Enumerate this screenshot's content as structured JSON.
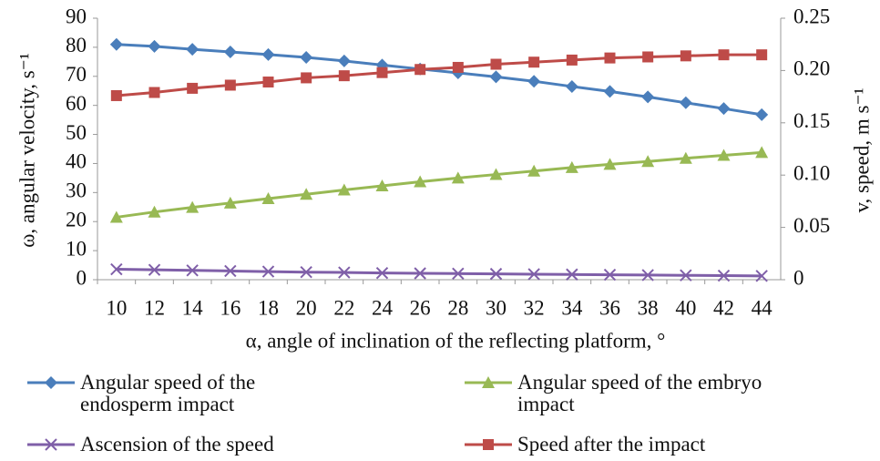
{
  "chart_data": {
    "type": "line",
    "categories": [
      "10",
      "12",
      "14",
      "16",
      "18",
      "20",
      "22",
      "24",
      "26",
      "28",
      "30",
      "32",
      "34",
      "36",
      "38",
      "40",
      "42",
      "44"
    ],
    "x_label": "α, angle of inclination of the reflecting platform, °",
    "y_label": "ω, angular velocity, s⁻¹",
    "y2_label": "v, speed, m s⁻¹",
    "ylim": [
      0,
      90
    ],
    "yticks": [
      0,
      10,
      20,
      30,
      40,
      50,
      60,
      70,
      80,
      90
    ],
    "y2lim": [
      0,
      0.25
    ],
    "y2ticks": [
      0,
      0.05,
      {
        "value": 0.1,
        "label": "0.10"
      },
      0.15,
      {
        "value": 0.2,
        "label": "0.20"
      },
      0.25
    ],
    "series": [
      {
        "name": "Angular speed of the endosperm impact",
        "color": "#4a7ebb",
        "marker": "diamond",
        "values": [
          81,
          80.3,
          79.3,
          78.4,
          77.5,
          76.5,
          75.3,
          73.9,
          72.5,
          71.2,
          69.8,
          68.3,
          66.5,
          64.8,
          62.9,
          60.9,
          58.9,
          56.8
        ]
      },
      {
        "name": "Angular speed of the embryo impact",
        "color": "#98b954",
        "marker": "triangle",
        "values": [
          21.5,
          23.3,
          24.9,
          26.4,
          27.9,
          29.4,
          30.9,
          32.3,
          33.7,
          35,
          36.2,
          37.4,
          38.6,
          39.7,
          40.7,
          41.8,
          42.8,
          43.8
        ]
      },
      {
        "name": "Ascension of the speed",
        "color": "#7f5fa8",
        "marker": "x",
        "values": [
          3.6,
          3.4,
          3.2,
          3.0,
          2.8,
          2.6,
          2.5,
          2.3,
          2.2,
          2.1,
          2.0,
          1.9,
          1.8,
          1.7,
          1.6,
          1.5,
          1.4,
          1.3
        ]
      },
      {
        "name": "Speed after the impact",
        "color": "#be4b48",
        "marker": "square",
        "axis": "y2",
        "values": [
          0.176,
          0.179,
          0.183,
          0.186,
          0.189,
          0.193,
          0.195,
          0.198,
          0.201,
          0.203,
          0.206,
          0.208,
          0.21,
          0.212,
          0.213,
          0.214,
          0.215,
          0.215
        ]
      }
    ]
  }
}
